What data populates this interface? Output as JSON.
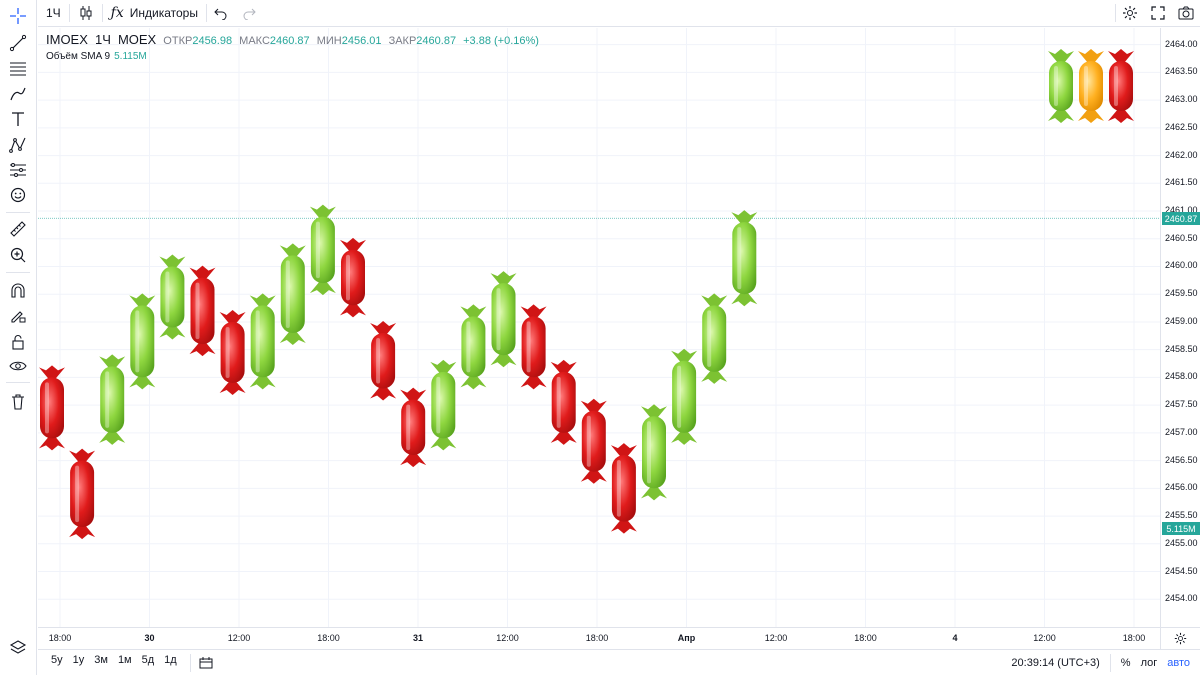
{
  "top_toolbar": {
    "interval": "1Ч",
    "indicators_label": "Индикаторы"
  },
  "legend": {
    "symbol": "IMOEX",
    "interval": "1Ч",
    "exchange": "MOEX",
    "open_label": "ОТКР",
    "open": "2456.98",
    "high_label": "МАКС",
    "high": "2460.87",
    "low_label": "МИН",
    "low": "2456.01",
    "close_label": "ЗАКР",
    "close": "2460.87",
    "change": "+3.88 (+0.16%)",
    "volume_label": "Объём SMA 9",
    "volume_value": "5.115M"
  },
  "price_axis": {
    "labels": [
      "2464.00",
      "2463.50",
      "2463.00",
      "2462.50",
      "2462.00",
      "2461.50",
      "2461.00",
      "2460.50",
      "2460.00",
      "2459.50",
      "2459.00",
      "2458.50",
      "2458.00",
      "2457.50",
      "2457.00",
      "2456.50",
      "2456.00",
      "2455.50",
      "2455.00",
      "2454.50",
      "2454.00"
    ],
    "current_price": "2460.87",
    "volume_badge": "5.115M"
  },
  "time_axis": {
    "labels": [
      "18:00",
      "30",
      "12:00",
      "18:00",
      "31",
      "12:00",
      "18:00",
      "Апр",
      "12:00",
      "18:00",
      "4",
      "12:00",
      "18:00",
      "5"
    ]
  },
  "bottom_bar": {
    "ranges": [
      "5y",
      "1y",
      "3м",
      "1м",
      "5д",
      "1д"
    ],
    "clock": "20:39:14 (UTC+3)",
    "percent": "%",
    "log": "лог",
    "auto": "авто"
  },
  "chart_data": {
    "type": "candlestick",
    "ylim": [
      2453.5,
      2464.3
    ],
    "colors": {
      "up": "#8ed63f",
      "down": "#e01b1b",
      "neutral": "#ffb020"
    },
    "candles": [
      {
        "o": 2458.0,
        "c": 2456.9,
        "dir": "down"
      },
      {
        "o": 2456.5,
        "c": 2455.3,
        "dir": "down"
      },
      {
        "o": 2457.0,
        "c": 2458.2,
        "dir": "up"
      },
      {
        "o": 2458.0,
        "c": 2459.3,
        "dir": "up"
      },
      {
        "o": 2458.9,
        "c": 2460.0,
        "dir": "up"
      },
      {
        "o": 2459.8,
        "c": 2458.6,
        "dir": "down"
      },
      {
        "o": 2459.0,
        "c": 2457.9,
        "dir": "down"
      },
      {
        "o": 2458.0,
        "c": 2459.3,
        "dir": "up"
      },
      {
        "o": 2458.8,
        "c": 2460.2,
        "dir": "up"
      },
      {
        "o": 2459.7,
        "c": 2460.9,
        "dir": "up"
      },
      {
        "o": 2460.3,
        "c": 2459.3,
        "dir": "down"
      },
      {
        "o": 2458.8,
        "c": 2457.8,
        "dir": "down"
      },
      {
        "o": 2457.6,
        "c": 2456.6,
        "dir": "down"
      },
      {
        "o": 2456.9,
        "c": 2458.1,
        "dir": "up"
      },
      {
        "o": 2458.0,
        "c": 2459.1,
        "dir": "up"
      },
      {
        "o": 2458.4,
        "c": 2459.7,
        "dir": "up"
      },
      {
        "o": 2459.1,
        "c": 2458.0,
        "dir": "down"
      },
      {
        "o": 2458.1,
        "c": 2457.0,
        "dir": "down"
      },
      {
        "o": 2457.4,
        "c": 2456.3,
        "dir": "down"
      },
      {
        "o": 2456.6,
        "c": 2455.4,
        "dir": "down"
      },
      {
        "o": 2456.0,
        "c": 2457.3,
        "dir": "up"
      },
      {
        "o": 2457.0,
        "c": 2458.3,
        "dir": "up"
      },
      {
        "o": 2458.1,
        "c": 2459.3,
        "dir": "up"
      },
      {
        "o": 2459.5,
        "c": 2460.8,
        "dir": "up"
      }
    ]
  },
  "corner_candies": [
    "up",
    "neutral",
    "down"
  ]
}
